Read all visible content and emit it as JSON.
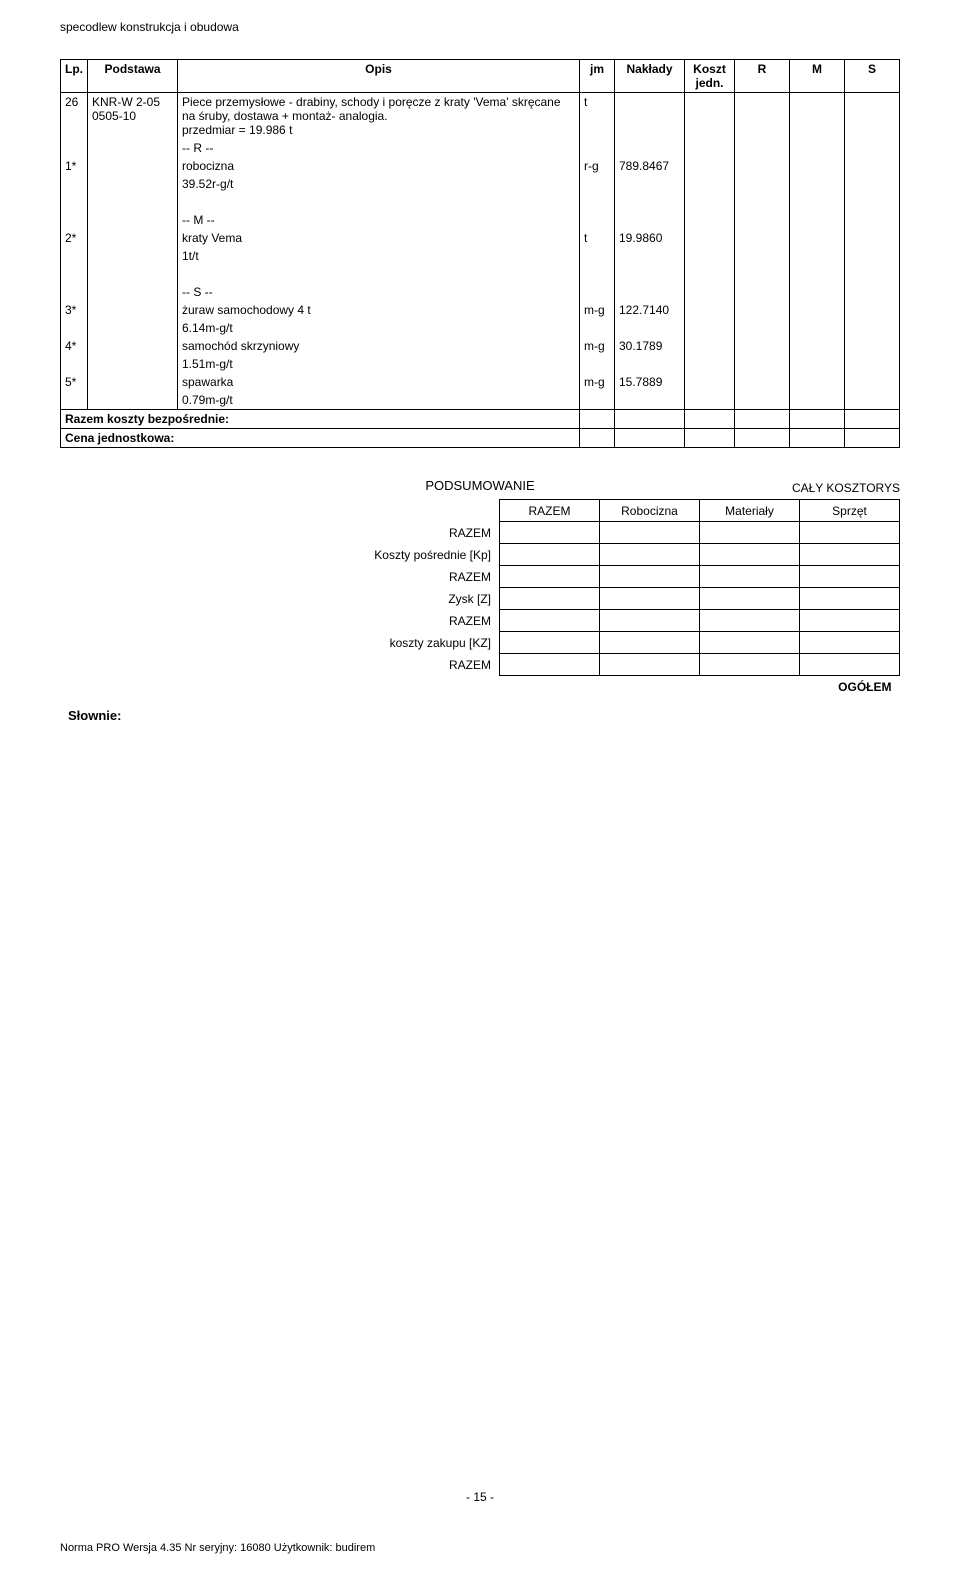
{
  "header": "specodlew konstrukcja i obudowa",
  "columns": {
    "lp": "Lp.",
    "pod": "Podstawa",
    "opis": "Opis",
    "jm": "jm",
    "nak": "Nakłady",
    "kj": "Koszt jedn.",
    "r": "R",
    "m": "M",
    "s": "S"
  },
  "main_row": {
    "lp": "26",
    "pod": "KNR-W 2-05 0505-10",
    "opis": "Piece przemysłowe - drabiny, schody i poręcze z kraty 'Vema' skręcane na śruby, dostawa + montaż- analogia.\nprzedmiar  = 19.986 t",
    "jm": "t"
  },
  "sections": [
    {
      "title": "-- R --",
      "rows": [
        {
          "lp": "1*",
          "opis": "robocizna",
          "sub": "39.52r-g/t",
          "jm": "r-g",
          "val": "789.8467"
        }
      ]
    },
    {
      "title": "-- M --",
      "rows": [
        {
          "lp": "2*",
          "opis": "kraty Vema",
          "sub": "1t/t",
          "jm": "t",
          "val": "19.9860"
        }
      ]
    },
    {
      "title": "-- S --",
      "rows": [
        {
          "lp": "3*",
          "opis": "żuraw samochodowy 4 t",
          "sub": "6.14m-g/t",
          "jm": "m-g",
          "val": "122.7140"
        },
        {
          "lp": "4*",
          "opis": "samochód skrzyniowy",
          "sub": "1.51m-g/t",
          "jm": "m-g",
          "val": "30.1789"
        },
        {
          "lp": "5*",
          "opis": "spawarka",
          "sub": "0.79m-g/t",
          "jm": "m-g",
          "val": "15.7889"
        }
      ]
    }
  ],
  "footer_rows": {
    "razem": "Razem koszty bezpośrednie:",
    "cena": "Cena jednostkowa:"
  },
  "summary": {
    "title": "PODSUMOWANIE",
    "caption": "CAŁY KOSZTORYS",
    "headers": {
      "razem": "RAZEM",
      "rob": "Robocizna",
      "mat": "Materiały",
      "spr": "Sprzęt"
    },
    "rows": [
      "RAZEM",
      "Koszty pośrednie [Kp]",
      "RAZEM",
      "Zysk [Z]",
      "RAZEM",
      "koszty zakupu [KZ]",
      "RAZEM"
    ],
    "ogolem": "OGÓŁEM"
  },
  "slownie": "Słownie:",
  "page_num": "- 15 -",
  "footer": "Norma PRO Wersja 4.35 Nr seryjny: 16080 Użytkownik: budirem"
}
